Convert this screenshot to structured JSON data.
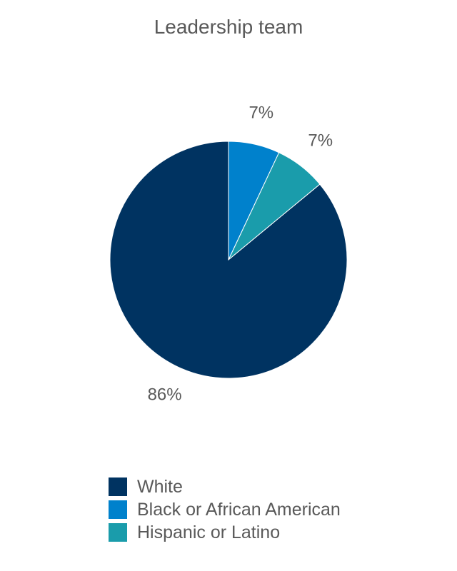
{
  "chart_data": {
    "type": "pie",
    "title": "Leadership team",
    "slices": [
      {
        "name": "Black or African American",
        "value": 7,
        "label": "7%",
        "color": "#0081cc"
      },
      {
        "name": "Hispanic or Latino",
        "value": 7,
        "label": "7%",
        "color": "#1a9cab"
      },
      {
        "name": "White",
        "value": 86,
        "label": "86%",
        "color": "#003361"
      }
    ],
    "legend": {
      "placement": "bottom-left",
      "entries": [
        {
          "name": "White",
          "color": "#003361"
        },
        {
          "name": "Black or African American",
          "color": "#0081cc"
        },
        {
          "name": "Hispanic or Latino",
          "color": "#1a9cab"
        }
      ]
    }
  }
}
